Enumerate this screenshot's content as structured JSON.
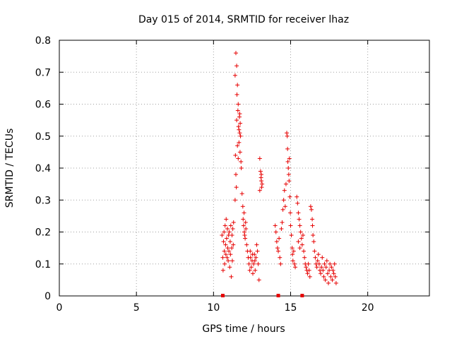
{
  "chart_data": {
    "type": "scatter",
    "title": "Day 015 of 2014, SRMTID for receiver lhaz",
    "xlabel": "GPS time / hours",
    "ylabel": "SRMTID / TECUs",
    "xlim": [
      0,
      24
    ],
    "ylim": [
      0,
      0.8
    ],
    "xticks": [
      0,
      5,
      10,
      15,
      20
    ],
    "yticks": [
      0,
      0.1,
      0.2,
      0.3,
      0.4,
      0.5,
      0.6,
      0.7,
      0.8
    ],
    "xtick_labels": [
      "0",
      "5",
      "10",
      "15",
      "20"
    ],
    "ytick_labels": [
      "0",
      "0.1",
      "0.2",
      "0.3",
      "0.4",
      "0.5",
      "0.6",
      "0.7",
      "0.8"
    ],
    "grid": true,
    "marker": "+",
    "color": "#e60000",
    "series": [
      {
        "name": "SRMTID",
        "points": [
          [
            10.55,
            0.19
          ],
          [
            10.6,
            0.12
          ],
          [
            10.62,
            0.08
          ],
          [
            10.65,
            0.17
          ],
          [
            10.68,
            0.2
          ],
          [
            10.7,
            0.14
          ],
          [
            10.72,
            0.1
          ],
          [
            10.75,
            0.22
          ],
          [
            10.78,
            0.16
          ],
          [
            10.8,
            0.13
          ],
          [
            10.82,
            0.24
          ],
          [
            10.85,
            0.18
          ],
          [
            10.88,
            0.12
          ],
          [
            10.9,
            0.21
          ],
          [
            10.92,
            0.15
          ],
          [
            10.95,
            0.11
          ],
          [
            10.98,
            0.19
          ],
          [
            11.0,
            0.14
          ],
          [
            11.02,
            0.2
          ],
          [
            11.05,
            0.09
          ],
          [
            11.08,
            0.17
          ],
          [
            11.1,
            0.13
          ],
          [
            11.12,
            0.22
          ],
          [
            11.15,
            0.06
          ],
          [
            11.18,
            0.15
          ],
          [
            11.2,
            0.19
          ],
          [
            11.22,
            0.11
          ],
          [
            11.25,
            0.21
          ],
          [
            11.28,
            0.16
          ],
          [
            11.3,
            0.23
          ],
          [
            11.4,
            0.69
          ],
          [
            11.45,
            0.76
          ],
          [
            11.5,
            0.72
          ],
          [
            11.52,
            0.63
          ],
          [
            11.55,
            0.66
          ],
          [
            11.58,
            0.58
          ],
          [
            11.6,
            0.6
          ],
          [
            11.62,
            0.53
          ],
          [
            11.65,
            0.48
          ],
          [
            11.68,
            0.56
          ],
          [
            11.7,
            0.51
          ],
          [
            11.72,
            0.45
          ],
          [
            11.75,
            0.5
          ],
          [
            11.78,
            0.42
          ],
          [
            11.8,
            0.4
          ],
          [
            11.5,
            0.55
          ],
          [
            11.42,
            0.44
          ],
          [
            11.45,
            0.38
          ],
          [
            11.48,
            0.34
          ],
          [
            11.4,
            0.3
          ],
          [
            11.55,
            0.47
          ],
          [
            11.6,
            0.43
          ],
          [
            11.65,
            0.52
          ],
          [
            11.7,
            0.57
          ],
          [
            11.73,
            0.54
          ],
          [
            11.85,
            0.32
          ],
          [
            11.9,
            0.28
          ],
          [
            11.92,
            0.24
          ],
          [
            11.95,
            0.22
          ],
          [
            12.0,
            0.2
          ],
          [
            12.05,
            0.18
          ],
          [
            12.1,
            0.21
          ],
          [
            12.15,
            0.16
          ],
          [
            12.2,
            0.14
          ],
          [
            12.25,
            0.12
          ],
          [
            11.98,
            0.26
          ],
          [
            12.02,
            0.19
          ],
          [
            12.08,
            0.23
          ],
          [
            12.3,
            0.1
          ],
          [
            12.35,
            0.08
          ],
          [
            12.4,
            0.12
          ],
          [
            12.45,
            0.09
          ],
          [
            12.5,
            0.11
          ],
          [
            12.55,
            0.07
          ],
          [
            12.6,
            0.1
          ],
          [
            12.65,
            0.13
          ],
          [
            12.7,
            0.08
          ],
          [
            12.75,
            0.12
          ],
          [
            12.8,
            0.16
          ],
          [
            12.85,
            0.14
          ],
          [
            12.9,
            0.1
          ],
          [
            12.95,
            0.05
          ],
          [
            12.38,
            0.14
          ],
          [
            12.52,
            0.13
          ],
          [
            12.68,
            0.11
          ],
          [
            13.0,
            0.43
          ],
          [
            13.05,
            0.39
          ],
          [
            13.08,
            0.37
          ],
          [
            13.1,
            0.36
          ],
          [
            13.12,
            0.34
          ],
          [
            13.15,
            0.35
          ],
          [
            13.0,
            0.33
          ],
          [
            13.1,
            0.38
          ],
          [
            14.0,
            0.22
          ],
          [
            14.05,
            0.2
          ],
          [
            14.1,
            0.17
          ],
          [
            14.15,
            0.15
          ],
          [
            14.2,
            0.14
          ],
          [
            14.25,
            0.18
          ],
          [
            14.3,
            0.12
          ],
          [
            14.35,
            0.1
          ],
          [
            14.4,
            0.21
          ],
          [
            14.45,
            0.23
          ],
          [
            14.5,
            0.27
          ],
          [
            14.55,
            0.3
          ],
          [
            14.6,
            0.33
          ],
          [
            14.65,
            0.28
          ],
          [
            14.7,
            0.35
          ],
          [
            14.75,
            0.51
          ],
          [
            14.78,
            0.5
          ],
          [
            14.8,
            0.46
          ],
          [
            14.82,
            0.42
          ],
          [
            14.85,
            0.4
          ],
          [
            14.88,
            0.38
          ],
          [
            14.9,
            0.36
          ],
          [
            14.92,
            0.43
          ],
          [
            14.95,
            0.31
          ],
          [
            14.98,
            0.26
          ],
          [
            15.0,
            0.22
          ],
          [
            15.05,
            0.19
          ],
          [
            15.1,
            0.15
          ],
          [
            15.12,
            0.13
          ],
          [
            15.15,
            0.11
          ],
          [
            15.2,
            0.14
          ],
          [
            15.25,
            0.1
          ],
          [
            15.3,
            0.09
          ],
          [
            15.4,
            0.31
          ],
          [
            15.45,
            0.29
          ],
          [
            15.5,
            0.26
          ],
          [
            15.55,
            0.24
          ],
          [
            15.6,
            0.22
          ],
          [
            15.65,
            0.2
          ],
          [
            15.7,
            0.18
          ],
          [
            15.75,
            0.16
          ],
          [
            15.8,
            0.19
          ],
          [
            15.85,
            0.14
          ],
          [
            15.9,
            0.12
          ],
          [
            15.95,
            0.1
          ],
          [
            15.5,
            0.17
          ],
          [
            15.6,
            0.15
          ],
          [
            16.0,
            0.09
          ],
          [
            16.05,
            0.08
          ],
          [
            16.1,
            0.07
          ],
          [
            16.15,
            0.1
          ],
          [
            16.2,
            0.08
          ],
          [
            16.25,
            0.06
          ],
          [
            16.3,
            0.28
          ],
          [
            16.35,
            0.27
          ],
          [
            16.4,
            0.24
          ],
          [
            16.42,
            0.22
          ],
          [
            16.45,
            0.19
          ],
          [
            16.5,
            0.17
          ],
          [
            16.55,
            0.14
          ],
          [
            16.6,
            0.12
          ],
          [
            16.65,
            0.1
          ],
          [
            16.7,
            0.09
          ],
          [
            16.75,
            0.11
          ],
          [
            16.8,
            0.13
          ],
          [
            16.85,
            0.1
          ],
          [
            16.9,
            0.08
          ],
          [
            16.95,
            0.07
          ],
          [
            17.0,
            0.09
          ],
          [
            17.05,
            0.12
          ],
          [
            17.1,
            0.08
          ],
          [
            17.15,
            0.06
          ],
          [
            17.2,
            0.1
          ],
          [
            17.25,
            0.05
          ],
          [
            17.3,
            0.09
          ],
          [
            17.35,
            0.11
          ],
          [
            17.4,
            0.07
          ],
          [
            17.45,
            0.04
          ],
          [
            17.5,
            0.08
          ],
          [
            17.55,
            0.1
          ],
          [
            17.6,
            0.06
          ],
          [
            17.65,
            0.09
          ],
          [
            17.7,
            0.05
          ],
          [
            17.75,
            0.08
          ],
          [
            17.8,
            0.07
          ],
          [
            17.85,
            0.1
          ],
          [
            17.9,
            0.06
          ],
          [
            17.95,
            0.04
          ]
        ]
      }
    ],
    "axis_markers": [
      10.6,
      14.2,
      15.75
    ]
  }
}
